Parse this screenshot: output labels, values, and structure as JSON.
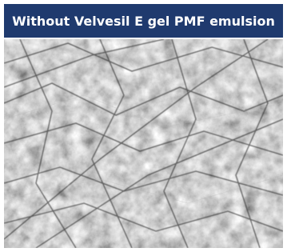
{
  "header": {
    "title": "Without Velvesil E gel PMF emulsion"
  }
}
